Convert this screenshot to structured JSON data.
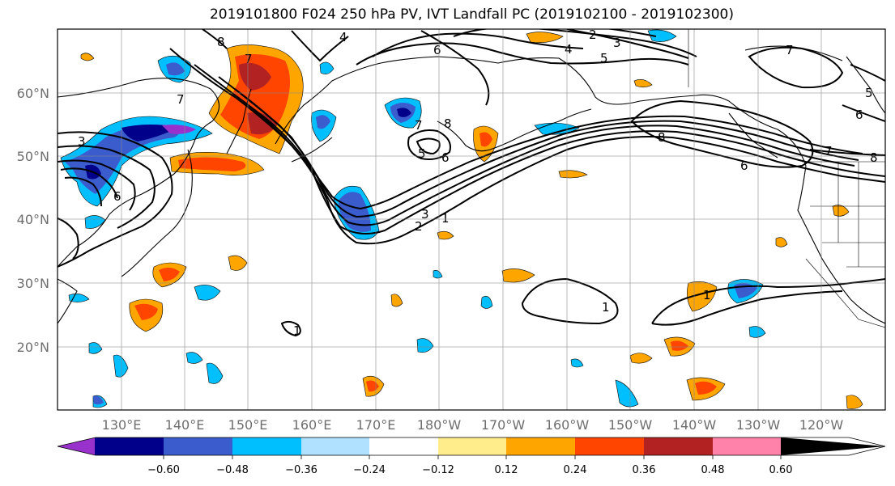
{
  "title": "2019101800 F024 250 hPa PV, IVT Landfall PC (2019102100 - 2019102300)",
  "map": {
    "lat_labels": [
      "60°N",
      "50°N",
      "40°N",
      "30°N",
      "20°N"
    ],
    "lon_labels": [
      "130°E",
      "140°E",
      "150°E",
      "160°E",
      "170°E",
      "180°W",
      "170°W",
      "160°W",
      "150°W",
      "140°W",
      "130°W",
      "120°W"
    ],
    "contour_labels": [
      "8",
      "7",
      "4",
      "2",
      "3",
      "4",
      "5",
      "6",
      "7",
      "5",
      "6",
      "7",
      "8",
      "3",
      "6",
      "7",
      "7",
      "8",
      "6",
      "5",
      "6",
      "8",
      "2",
      "3",
      "1",
      "1",
      "1",
      "1"
    ]
  },
  "colorbar": {
    "tick_labels": [
      "−0.60",
      "−0.48",
      "−0.36",
      "−0.24",
      "−0.12",
      "0.12",
      "0.24",
      "0.36",
      "0.48",
      "0.60"
    ],
    "colors": [
      "#9932cc",
      "#00008b",
      "#3a5ccc",
      "#00bfff",
      "#b0e2ff",
      "#ffffff",
      "#ffec8b",
      "#ffa500",
      "#ff4500",
      "#b22222",
      "#ff82ab"
    ]
  }
}
